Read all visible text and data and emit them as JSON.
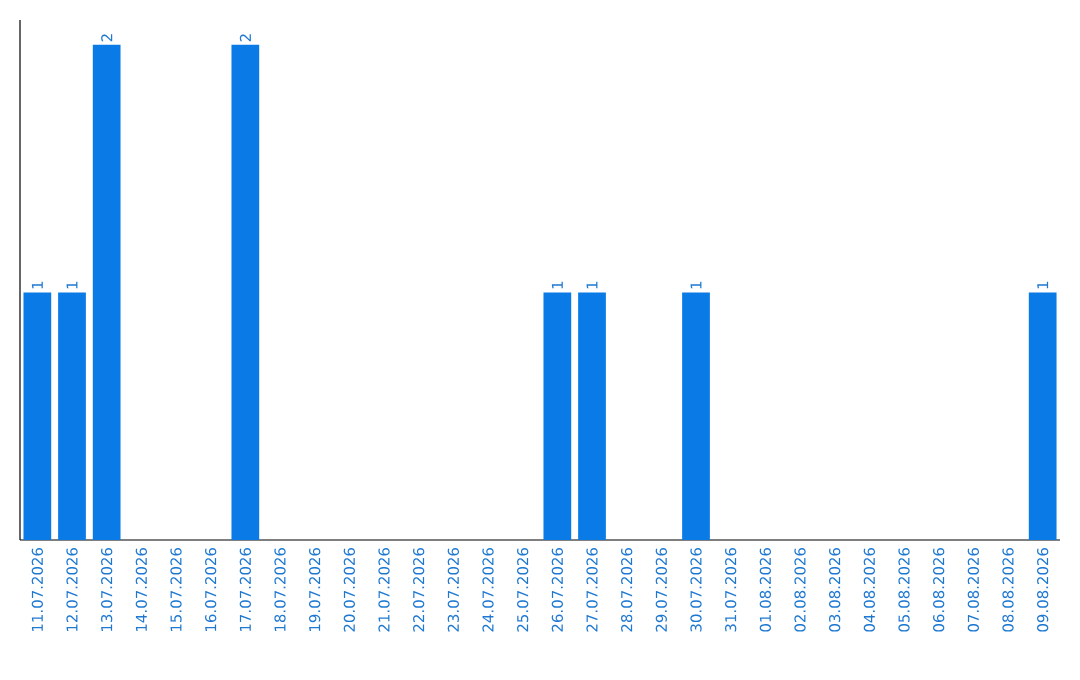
{
  "chart_data": {
    "type": "bar",
    "categories": [
      "11.07.2026",
      "12.07.2026",
      "13.07.2026",
      "14.07.2026",
      "15.07.2026",
      "16.07.2026",
      "17.07.2026",
      "18.07.2026",
      "19.07.2026",
      "20.07.2026",
      "21.07.2026",
      "22.07.2026",
      "23.07.2026",
      "24.07.2026",
      "25.07.2026",
      "26.07.2026",
      "27.07.2026",
      "28.07.2026",
      "29.07.2026",
      "30.07.2026",
      "31.07.2026",
      "01.08.2026",
      "02.08.2026",
      "03.08.2026",
      "04.08.2026",
      "05.08.2026",
      "06.08.2026",
      "07.08.2026",
      "08.08.2026",
      "09.08.2026"
    ],
    "values": [
      1,
      1,
      2,
      0,
      0,
      0,
      2,
      0,
      0,
      0,
      0,
      0,
      0,
      0,
      0,
      1,
      1,
      0,
      0,
      1,
      0,
      0,
      0,
      0,
      0,
      0,
      0,
      0,
      0,
      1
    ],
    "value_labels": [
      "1",
      "1",
      "2",
      null,
      null,
      null,
      "2",
      null,
      null,
      null,
      null,
      null,
      null,
      null,
      null,
      "1",
      "1",
      null,
      null,
      "1",
      null,
      null,
      null,
      null,
      null,
      null,
      null,
      null,
      null,
      "1"
    ],
    "color": "#0a7be6"
  }
}
